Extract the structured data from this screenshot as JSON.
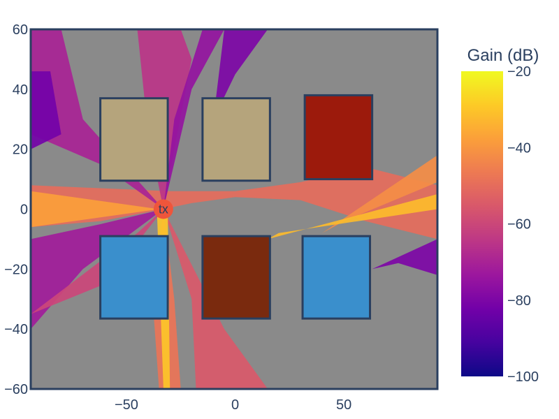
{
  "chart_data": {
    "type": "heatmap",
    "title": "",
    "xlabel": "",
    "ylabel": "",
    "xlim": [
      -94,
      93
    ],
    "ylim": [
      -60,
      60
    ],
    "x_ticks": [
      -50,
      0,
      50
    ],
    "y_ticks": [
      60,
      40,
      20,
      0,
      -20,
      -40,
      -60
    ],
    "x_tick_labels": [
      "−50",
      "0",
      "50"
    ],
    "y_tick_labels": [
      "60",
      "40",
      "20",
      "0",
      "−20",
      "−40",
      "−60"
    ],
    "no_signal_color": "#8a8a8a",
    "colorbar": {
      "title": "Gain (dB)",
      "range": [
        -100,
        -20
      ],
      "ticks": [
        -20,
        -40,
        -60,
        -80,
        -100
      ],
      "tick_labels": [
        "−20",
        "−40",
        "−60",
        "−80",
        "−100"
      ],
      "colorscale": [
        "#0d0887",
        "#46039f",
        "#7201a8",
        "#9c179e",
        "#bd3786",
        "#d8576b",
        "#ed7953",
        "#fb9f3a",
        "#fdca26",
        "#f0f921"
      ]
    },
    "transmitter": {
      "label": "tx",
      "x": -33,
      "y": 0,
      "color": "#ef553b"
    },
    "buildings": [
      {
        "x0": -62,
        "x1": -31,
        "y0": 9.5,
        "y1": 37,
        "color": "#b5a47c"
      },
      {
        "x0": -15,
        "x1": 16,
        "y0": 9.5,
        "y1": 37,
        "color": "#b5a47c"
      },
      {
        "x0": 32,
        "x1": 63,
        "y0": 10,
        "y1": 38,
        "color": "#9c1a0c"
      },
      {
        "x0": -62,
        "x1": -31,
        "y0": -36.5,
        "y1": -9,
        "color": "#3a8fcc"
      },
      {
        "x0": -15,
        "x1": 16,
        "y0": -36.5,
        "y1": -9,
        "color": "#7a2a0e"
      },
      {
        "x0": 31,
        "x1": 62,
        "y0": -36.5,
        "y1": -9,
        "color": "#3a8fcc"
      }
    ],
    "building_outline_color": "#2a3f5f",
    "coverage_regions": [
      {
        "points": [
          [
            -94,
            8
          ],
          [
            -94,
            -6
          ],
          [
            -62,
            -4
          ],
          [
            -40,
            -1
          ],
          [
            -20,
            2
          ],
          [
            0,
            4
          ],
          [
            30,
            3
          ],
          [
            60,
            -4
          ],
          [
            93,
            -10
          ],
          [
            93,
            8
          ],
          [
            60,
            14
          ],
          [
            30,
            9
          ],
          [
            0,
            6
          ],
          [
            -30,
            6
          ],
          [
            -62,
            7
          ]
        ],
        "level": -50
      },
      {
        "points": [
          [
            -45,
            60
          ],
          [
            -25,
            60
          ],
          [
            -20,
            50
          ],
          [
            -28,
            20
          ],
          [
            -33,
            0
          ],
          [
            -40,
            25
          ]
        ],
        "level": -65
      },
      {
        "points": [
          [
            -15,
            60
          ],
          [
            -5,
            60
          ],
          [
            -20,
            40
          ],
          [
            -33,
            0
          ],
          [
            -28,
            30
          ]
        ],
        "level": -75
      },
      {
        "points": [
          [
            -35,
            -60
          ],
          [
            -25,
            -60
          ],
          [
            -28,
            -30
          ],
          [
            -33,
            0
          ],
          [
            -38,
            -30
          ]
        ],
        "level": -48
      },
      {
        "points": [
          [
            -18,
            -60
          ],
          [
            15,
            -60
          ],
          [
            -5,
            -40
          ],
          [
            -33,
            0
          ],
          [
            -20,
            -30
          ]
        ],
        "level": -55
      },
      {
        "points": [
          [
            -94,
            -40
          ],
          [
            -94,
            -10
          ],
          [
            -62,
            -5
          ],
          [
            -33,
            0
          ],
          [
            -70,
            -20
          ]
        ],
        "level": -72
      },
      {
        "points": [
          [
            -94,
            60
          ],
          [
            -94,
            25
          ],
          [
            -62,
            15
          ],
          [
            -33,
            0
          ],
          [
            -70,
            30
          ],
          [
            -80,
            60
          ]
        ],
        "level": -70
      },
      {
        "points": [
          [
            -94,
            46
          ],
          [
            -85,
            46
          ],
          [
            -80,
            25
          ],
          [
            -94,
            20
          ]
        ],
        "level": -82
      },
      {
        "points": [
          [
            -5,
            60
          ],
          [
            15,
            60
          ],
          [
            0,
            45
          ],
          [
            -10,
            30
          ]
        ],
        "level": -80
      },
      {
        "points": [
          [
            63,
            -20
          ],
          [
            93,
            -10
          ],
          [
            93,
            -22
          ],
          [
            75,
            -18
          ]
        ],
        "level": -80
      },
      {
        "points": [
          [
            40,
            -8
          ],
          [
            93,
            18
          ],
          [
            93,
            9
          ],
          [
            50,
            -4
          ]
        ],
        "level": -42
      },
      {
        "points": [
          [
            -94,
            6
          ],
          [
            -94,
            -6
          ],
          [
            -35,
            0
          ]
        ],
        "level": -38
      },
      {
        "points": [
          [
            -36,
            0
          ],
          [
            -33,
            -60
          ],
          [
            -30,
            -60
          ],
          [
            -31,
            0
          ]
        ],
        "level": -30
      },
      {
        "points": [
          [
            15,
            -10
          ],
          [
            93,
            5
          ],
          [
            93,
            0
          ],
          [
            20,
            -8
          ]
        ],
        "level": -32
      },
      {
        "points": [
          [
            -60,
            -25
          ],
          [
            -33,
            0
          ],
          [
            -45,
            -8
          ],
          [
            -94,
            -35
          ]
        ],
        "level": -60
      }
    ]
  }
}
